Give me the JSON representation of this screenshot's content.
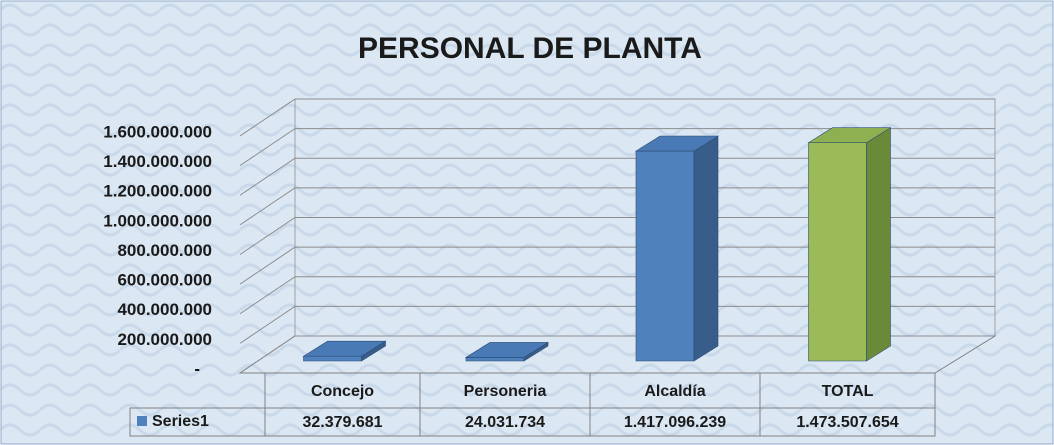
{
  "chart_data": {
    "type": "bar3d",
    "title": "PERSONAL DE PLANTA",
    "categories": [
      "Concejo",
      "Personeria",
      "Alcaldía",
      "TOTAL"
    ],
    "series": [
      {
        "name": "Series1",
        "color": "#4f81bd",
        "colors": [
          "#4f81bd",
          "#4f81bd",
          "#4f81bd",
          "#9bbb59"
        ],
        "values": [
          32379681,
          24031734,
          1417096239,
          1473507654
        ],
        "value_labels": [
          "32.379.681",
          "24.031.734",
          "1.417.096.239",
          "1.473.507.654"
        ]
      }
    ],
    "ylim": [
      0,
      1600000000
    ],
    "yticks": [
      {
        "value": 0,
        "label": "-"
      },
      {
        "value": 200000000,
        "label": "200.000.000"
      },
      {
        "value": 400000000,
        "label": "400.000.000"
      },
      {
        "value": 600000000,
        "label": "600.000.000"
      },
      {
        "value": 800000000,
        "label": "800.000.000"
      },
      {
        "value": 1000000000,
        "label": "1.000.000.000"
      },
      {
        "value": 1200000000,
        "label": "1.200.000.000"
      },
      {
        "value": 1400000000,
        "label": "1.400.000.000"
      },
      {
        "value": 1600000000,
        "label": "1.600.000.000"
      }
    ],
    "grid": true,
    "data_table": true
  }
}
